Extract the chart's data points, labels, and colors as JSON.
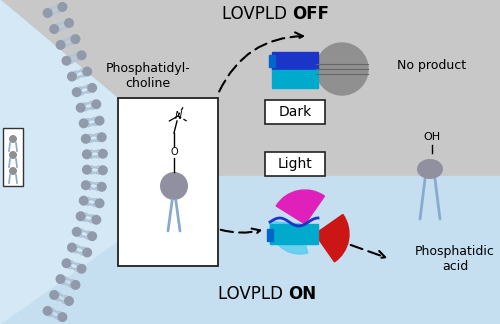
{
  "bg_gray": "#c8c8c8",
  "bg_blue": "#c5dff0",
  "bg_fan_blue": "#d5e8f5",
  "blue_dark": "#1a35c8",
  "blue_mid": "#0066cc",
  "cyan": "#00aacc",
  "gray_head": "#909090",
  "gray_head2": "#9090a0",
  "magenta": "#e020bb",
  "red_wedge": "#cc1515",
  "tail_color": "#88aacc",
  "tail_color2": "#a0b8cc",
  "membrane_head": "#909aaa",
  "membrane_tail": "#b0c4d8",
  "label_phosphatidylcholine": "Phosphatidyl-\ncholine",
  "label_no_product": "No product",
  "label_phosphatidic": "Phosphatidic\nacid",
  "label_dark": "Dark",
  "label_light": "Light",
  "lovpld_normal": "LOVPLD ",
  "lovpld_off": "OFF",
  "lovpld_on": "ON"
}
